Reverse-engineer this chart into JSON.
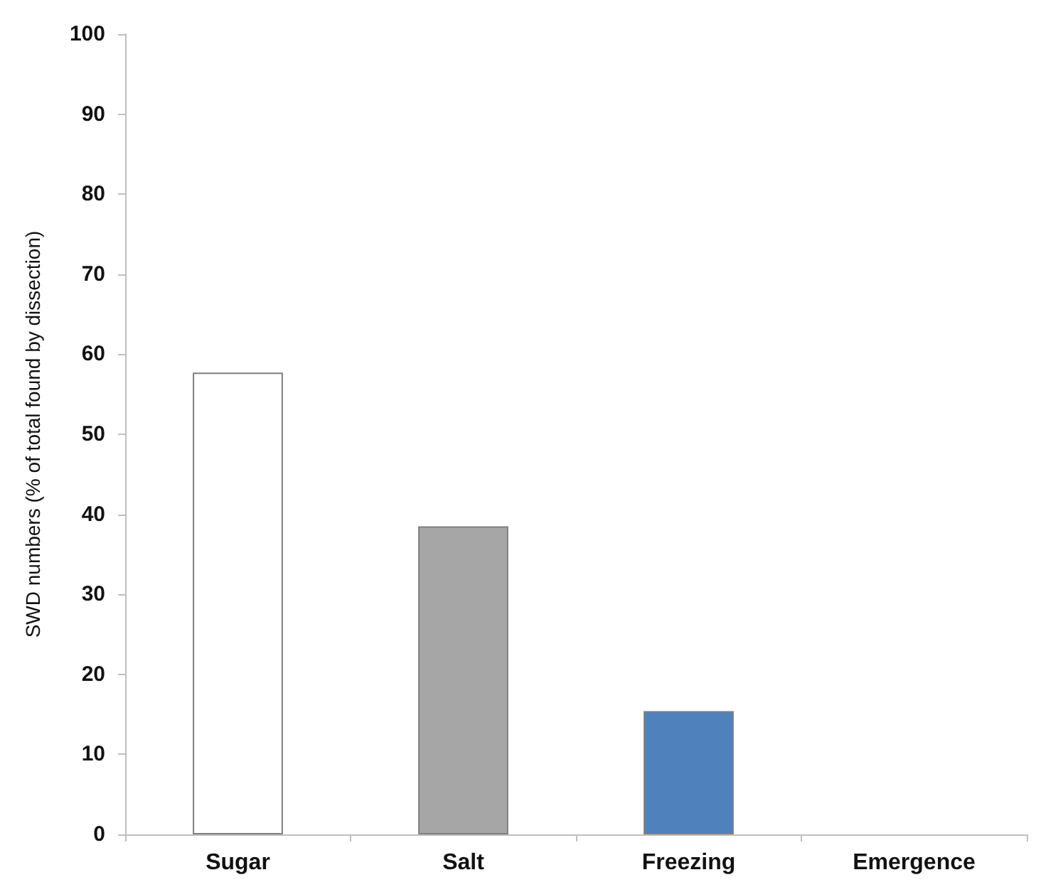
{
  "chart_data": {
    "type": "bar",
    "ylabel": "SWD numbers (% of total found by dissection)",
    "categories": [
      "Sugar",
      "Salt",
      "Freezing",
      "Emergence"
    ],
    "values": [
      57.7,
      38.5,
      15.4,
      0
    ],
    "colors": [
      "#ffffff",
      "#a6a6a6",
      "#4f81bd",
      "#ffffff"
    ],
    "ylim": [
      0,
      100
    ],
    "yticks": [
      0,
      10,
      20,
      30,
      40,
      50,
      60,
      70,
      80,
      90,
      100
    ],
    "grid": false
  }
}
